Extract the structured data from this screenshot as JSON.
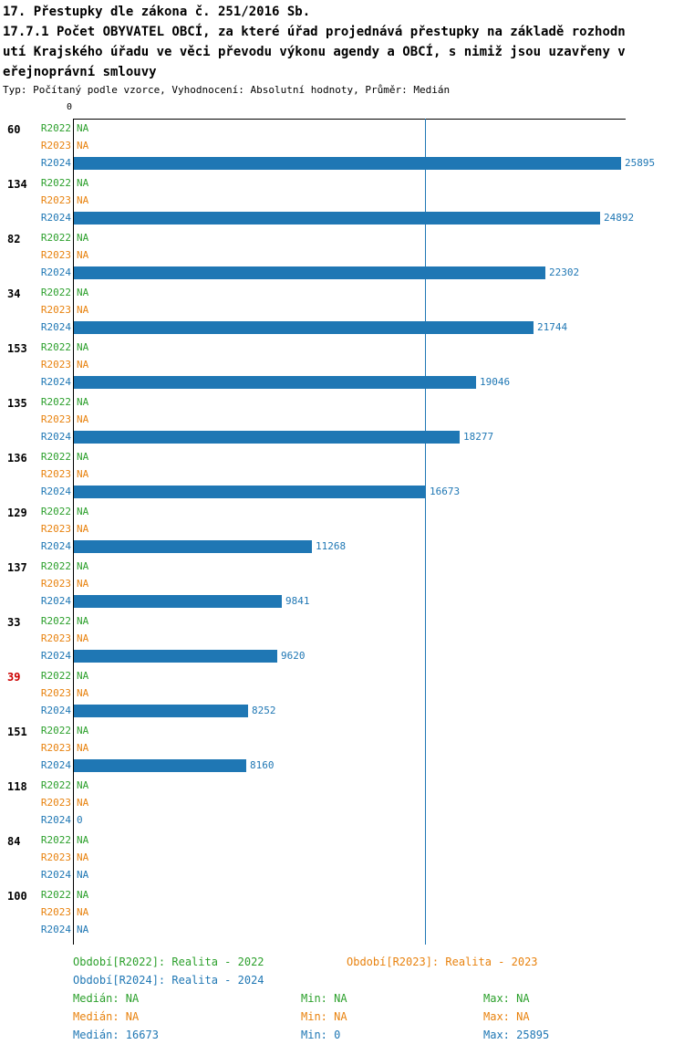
{
  "title": {
    "line1": "17. Přestupky dle zákona č. 251/2016 Sb.",
    "line2": "17.7.1 Počet OBYVATEL OBCÍ, za které úřad projednává přestupky na základě rozhodn",
    "line3": "utí Krajského úřadu ve věci převodu výkonu agendy a OBCÍ, s nimiž jsou uzavřeny v",
    "line4": "eřejnoprávní smlouvy",
    "meta": "Typ: Počítaný podle vzorce, Vyhodnocení: Absolutní hodnoty, Průměr: Medián"
  },
  "colors": {
    "r2022": "#2CA02C",
    "r2023": "#E8820E",
    "r2024": "#1F77B4",
    "bar": "#1F77B4",
    "axis": "#000000",
    "median_line": "#1F77B4",
    "highlight_label": "#CC0000"
  },
  "chart_data": {
    "type": "bar",
    "orientation": "horizontal",
    "x_tick_zero": "0",
    "xlim": [
      0,
      25895
    ],
    "median_value": 16673,
    "grid": "median-line-only",
    "row_labels": [
      "R2022",
      "R2023",
      "R2024"
    ],
    "groups": [
      {
        "label": "60",
        "highlight": false,
        "values": [
          "NA",
          "NA",
          25895
        ]
      },
      {
        "label": "134",
        "highlight": false,
        "values": [
          "NA",
          "NA",
          24892
        ]
      },
      {
        "label": "82",
        "highlight": false,
        "values": [
          "NA",
          "NA",
          22302
        ]
      },
      {
        "label": "34",
        "highlight": false,
        "values": [
          "NA",
          "NA",
          21744
        ]
      },
      {
        "label": "153",
        "highlight": false,
        "values": [
          "NA",
          "NA",
          19046
        ]
      },
      {
        "label": "135",
        "highlight": false,
        "values": [
          "NA",
          "NA",
          18277
        ]
      },
      {
        "label": "136",
        "highlight": false,
        "values": [
          "NA",
          "NA",
          16673
        ]
      },
      {
        "label": "129",
        "highlight": false,
        "values": [
          "NA",
          "NA",
          11268
        ]
      },
      {
        "label": "137",
        "highlight": false,
        "values": [
          "NA",
          "NA",
          9841
        ]
      },
      {
        "label": "33",
        "highlight": false,
        "values": [
          "NA",
          "NA",
          9620
        ]
      },
      {
        "label": "39",
        "highlight": true,
        "values": [
          "NA",
          "NA",
          8252
        ]
      },
      {
        "label": "151",
        "highlight": false,
        "values": [
          "NA",
          "NA",
          8160
        ]
      },
      {
        "label": "118",
        "highlight": false,
        "values": [
          "NA",
          "NA",
          0
        ]
      },
      {
        "label": "84",
        "highlight": false,
        "values": [
          "NA",
          "NA",
          "NA"
        ]
      },
      {
        "label": "100",
        "highlight": false,
        "values": [
          "NA",
          "NA",
          "NA"
        ]
      }
    ]
  },
  "legend": {
    "r2022": "Období[R2022]: Realita - 2022",
    "r2023": "Období[R2023]: Realita - 2023",
    "r2024": "Období[R2024]: Realita - 2024"
  },
  "stats": {
    "r2022": {
      "median": "Medián: NA",
      "min": "Min: NA",
      "max": "Max: NA"
    },
    "r2023": {
      "median": "Medián: NA",
      "min": "Min: NA",
      "max": "Max: NA"
    },
    "r2024": {
      "median": "Medián: 16673",
      "min": "Min: 0",
      "max": "Max: 25895"
    }
  }
}
